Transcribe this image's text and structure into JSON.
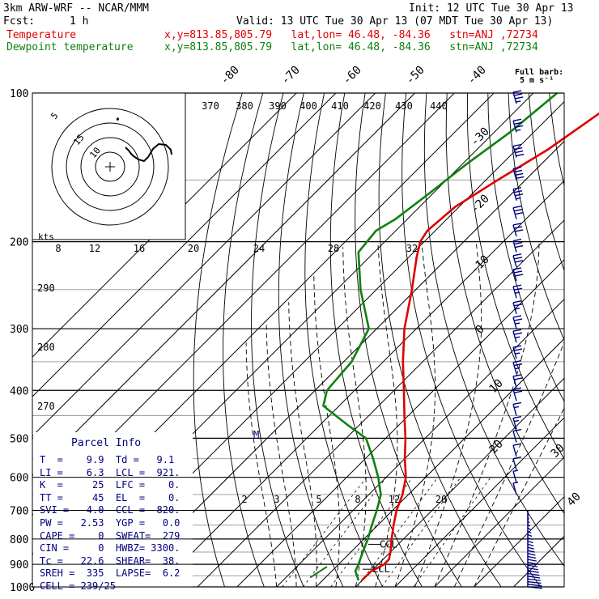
{
  "header": {
    "model": "3km ARW-WRF -- NCAR/MMM",
    "init": "Init: 12 UTC Tue 30 Apr 13",
    "fcst_label": "Fcst:",
    "fcst_value": "1 h",
    "valid": "Valid: 13 UTC Tue 30 Apr 13 (07 MDT Tue 30 Apr 13)",
    "legend_temp": "Temperature",
    "legend_temp_info": "x,y=813.85,805.79   lat,lon= 46.48, -84.36   stn=ANJ ,72734",
    "legend_dew": "Dewpoint temperature",
    "legend_dew_info": "x,y=813.85,805.79   lat,lon= 46.48, -84.36   stn=ANJ ,72734",
    "full_barb": "Full barb:",
    "full_barb_units": "5 m s⁻¹"
  },
  "chart_data": {
    "type": "skew-t log-p",
    "pressure_levels": [
      100,
      200,
      300,
      400,
      500,
      600,
      700,
      800,
      900,
      1000
    ],
    "isotherm_labels": [
      "-80",
      "-70",
      "-60",
      "-50",
      "-40",
      "-30",
      "-20",
      "-10",
      "0",
      "10",
      "20",
      "30",
      "40"
    ],
    "theta_labels": [
      "370",
      "380",
      "390",
      "400",
      "410",
      "420",
      "430",
      "440"
    ],
    "hodograph_speed_labels": [
      "8",
      "12",
      "16",
      "20",
      "24",
      "28",
      "32"
    ],
    "hodograph_units": "kts",
    "hodograph_ring_labels": [
      "5",
      "10",
      "15"
    ],
    "theta_left_labels": [
      "290",
      "280",
      "270"
    ],
    "mixing_ratio_labels": [
      "2",
      "3",
      "5",
      "8",
      "12",
      "20"
    ],
    "ccl_label": "CCL",
    "lcl_label": "LCL",
    "temperature": [
      {
        "p": 100,
        "t": -46
      },
      {
        "p": 130,
        "t": -52
      },
      {
        "p": 150,
        "t": -57
      },
      {
        "p": 170,
        "t": -61
      },
      {
        "p": 190,
        "t": -62
      },
      {
        "p": 200,
        "t": -61
      },
      {
        "p": 215,
        "t": -58
      },
      {
        "p": 250,
        "t": -51
      },
      {
        "p": 300,
        "t": -43
      },
      {
        "p": 350,
        "t": -35
      },
      {
        "p": 400,
        "t": -27.5
      },
      {
        "p": 450,
        "t": -21
      },
      {
        "p": 500,
        "t": -15
      },
      {
        "p": 550,
        "t": -10
      },
      {
        "p": 600,
        "t": -5
      },
      {
        "p": 650,
        "t": -1.5
      },
      {
        "p": 700,
        "t": 1
      },
      {
        "p": 750,
        "t": 4
      },
      {
        "p": 800,
        "t": 7
      },
      {
        "p": 850,
        "t": 10
      },
      {
        "p": 880,
        "t": 11.5
      },
      {
        "p": 900,
        "t": 11.5
      },
      {
        "p": 930,
        "t": 10
      },
      {
        "p": 970,
        "t": 9.9
      }
    ],
    "dewpoint": [
      {
        "p": 100,
        "t": -64
      },
      {
        "p": 120,
        "t": -66
      },
      {
        "p": 140,
        "t": -69
      },
      {
        "p": 160,
        "t": -71
      },
      {
        "p": 180,
        "t": -73
      },
      {
        "p": 190,
        "t": -75
      },
      {
        "p": 210,
        "t": -74
      },
      {
        "p": 250,
        "t": -64
      },
      {
        "p": 300,
        "t": -52
      },
      {
        "p": 350,
        "t": -48
      },
      {
        "p": 400,
        "t": -47
      },
      {
        "p": 430,
        "t": -44
      },
      {
        "p": 470,
        "t": -33
      },
      {
        "p": 500,
        "t": -25
      },
      {
        "p": 550,
        "t": -18
      },
      {
        "p": 600,
        "t": -12
      },
      {
        "p": 650,
        "t": -7
      },
      {
        "p": 700,
        "t": -4
      },
      {
        "p": 750,
        "t": -1.5
      },
      {
        "p": 800,
        "t": 1
      },
      {
        "p": 850,
        "t": 3
      },
      {
        "p": 900,
        "t": 5
      },
      {
        "p": 930,
        "t": 6
      },
      {
        "p": 970,
        "t": 9.1
      }
    ],
    "hodograph_trace": [
      [
        -19,
        -24
      ],
      [
        -23,
        -20
      ],
      [
        -26,
        -16
      ],
      [
        -29,
        -13
      ],
      [
        -35,
        -9
      ],
      [
        -42,
        -7
      ],
      [
        -47,
        -12
      ],
      [
        -53,
        -22
      ],
      [
        -60,
        -28
      ],
      [
        -69,
        -27
      ],
      [
        -75,
        -21
      ],
      [
        -76,
        -15
      ]
    ],
    "wind_barbs": [
      {
        "p": 105,
        "kt": 35
      },
      {
        "p": 120,
        "kt": 35
      },
      {
        "p": 135,
        "kt": 40
      },
      {
        "p": 150,
        "kt": 40
      },
      {
        "p": 165,
        "kt": 35
      },
      {
        "p": 180,
        "kt": 30
      },
      {
        "p": 195,
        "kt": 30
      },
      {
        "p": 210,
        "kt": 30
      },
      {
        "p": 225,
        "kt": 30
      },
      {
        "p": 240,
        "kt": 30
      },
      {
        "p": 260,
        "kt": 25
      },
      {
        "p": 280,
        "kt": 25
      },
      {
        "p": 300,
        "kt": 25
      },
      {
        "p": 320,
        "kt": 25
      },
      {
        "p": 345,
        "kt": 25
      },
      {
        "p": 370,
        "kt": 25
      },
      {
        "p": 395,
        "kt": 20
      },
      {
        "p": 420,
        "kt": 20
      },
      {
        "p": 450,
        "kt": 15
      },
      {
        "p": 480,
        "kt": 15
      },
      {
        "p": 510,
        "kt": 10
      },
      {
        "p": 545,
        "kt": 10
      },
      {
        "p": 580,
        "kt": 10
      },
      {
        "p": 615,
        "kt": 5
      },
      {
        "p": 650,
        "kt": 5
      }
    ]
  },
  "parcel_info": {
    "title": "Parcel Info",
    "rows": [
      "T  =    9.9  Td =   9.1",
      "LI =    6.3  LCL =  921.",
      "K  =     25  LFC =    0.",
      "TT =     45  EL  =    0.",
      "SVI =   4.0  CCL =  820.",
      "PW =   2.53  YGP =   0.0",
      "CAPE =    0  SWEAT=  279",
      "CIN =     0  HWBZ= 3300.",
      "Tc =   22.6  SHEAR=  38.",
      "SREH =  335  LAPSE=  6.2",
      "CELL = 239/25"
    ]
  },
  "colors": {
    "temperature": "#e00000",
    "dewpoint": "#108010",
    "parcel": "#000080",
    "grid": "#000000",
    "ruled": "#a0a0a0"
  }
}
